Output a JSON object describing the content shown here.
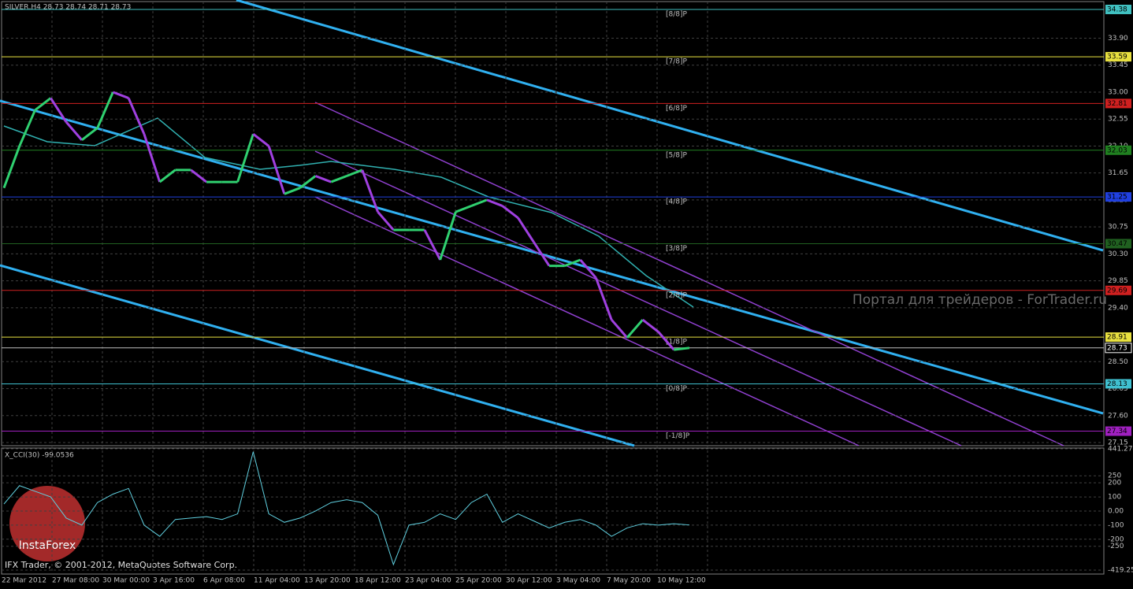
{
  "chart_data": {
    "type": "line",
    "title": "SILVER,H4  28.73 28.74 28.71 28.73",
    "watermark": "Портал для трейдеров - ForTrader.ru",
    "footer": "IFX Trader, © 2001-2012, MetaQuotes Software Corp.",
    "logo": "InstaForex",
    "ylim": [
      27.15,
      34.38
    ],
    "yticks": [
      {
        "value": 33.9,
        "label": "33.90"
      },
      33.45,
      {
        "value": 33.0,
        "label": "33.00"
      },
      32.55,
      {
        "value": 32.1,
        "label": "32.10"
      },
      31.65,
      {
        "value": 31.2,
        "label": "31.20"
      },
      30.75,
      {
        "value": 30.3,
        "label": "30.30"
      },
      29.85,
      {
        "value": 29.4,
        "label": "29.40"
      },
      {
        "value": 28.5,
        "label": "28.50"
      },
      28.05,
      {
        "value": 27.6,
        "label": "27.60"
      },
      27.15
    ],
    "levels": [
      {
        "value": 34.38,
        "label": "34.38",
        "tag": "[8/8]P",
        "color": "#40c0c0"
      },
      {
        "value": 33.59,
        "label": "33.59",
        "tag": "[7/8]P",
        "color": "#e8e040"
      },
      {
        "value": 32.81,
        "label": "32.81",
        "tag": "[6/8]P",
        "color": "#d02020"
      },
      {
        "value": 32.03,
        "label": "32.03",
        "tag": "[5/8]P",
        "color": "#208020"
      },
      {
        "value": 31.25,
        "label": "31.25",
        "tag": "[4/8]P",
        "color": "#2040e0"
      },
      {
        "value": 30.47,
        "label": "30.47",
        "tag": "[3/8]P",
        "color": "#206020"
      },
      {
        "value": 29.69,
        "label": "29.69",
        "tag": "[2/8]P",
        "color": "#d02020"
      },
      {
        "value": 28.91,
        "label": "28.91",
        "tag": "[1/8]P",
        "color": "#e8e040"
      },
      {
        "value": 28.13,
        "label": "28.13",
        "tag": "[0/8]P",
        "color": "#40c0d0"
      },
      {
        "value": 27.34,
        "label": "27.34",
        "tag": "[-1/8]P",
        "color": "#a020c0"
      }
    ],
    "current": {
      "value": 28.73,
      "label": "28.73"
    },
    "xticks": [
      "22 Mar 2012",
      "27 Mar 08:00",
      "30 Mar 00:00",
      "3 Apr 16:00",
      "6 Apr 08:00",
      "11 Apr 04:00",
      "13 Apr 20:00",
      "18 Apr 12:00",
      "23 Apr 04:00",
      "25 Apr 20:00",
      "30 Apr 12:00",
      "3 May 04:00",
      "7 May 20:00",
      "10 May 12:00"
    ],
    "series": [
      {
        "name": "SILVER close",
        "up_color": "#30d070",
        "down_color": "#a040e0",
        "values": [
          31.4,
          32.1,
          32.7,
          32.9,
          32.5,
          32.2,
          32.4,
          33.0,
          32.9,
          32.3,
          31.5,
          31.7,
          31.7,
          31.5,
          31.5,
          31.5,
          32.3,
          32.1,
          31.3,
          31.4,
          31.6,
          31.5,
          31.6,
          31.7,
          31.0,
          30.7,
          30.7,
          30.7,
          30.2,
          31.0,
          31.1,
          31.2,
          31.1,
          30.9,
          30.5,
          30.1,
          30.1,
          30.2,
          29.9,
          29.2,
          28.9,
          29.2,
          29.0,
          28.7,
          28.73
        ]
      }
    ],
    "cci": {
      "label": "X_CCI(30) -99.0536",
      "color": "#60d0e0",
      "ylim": [
        -419.254,
        441.274
      ],
      "yticks": [
        441.274,
        250,
        200,
        100,
        {
          "value": 0,
          "label": "0.00"
        },
        -100,
        -200,
        -250,
        -419.254
      ],
      "values": [
        50,
        180,
        140,
        100,
        -50,
        -100,
        60,
        120,
        160,
        -100,
        -180,
        -60,
        -50,
        -40,
        -60,
        -20,
        420,
        -20,
        -80,
        -50,
        0,
        60,
        80,
        60,
        -30,
        -380,
        -100,
        -80,
        -20,
        -60,
        60,
        120,
        -80,
        -20,
        -70,
        -120,
        -80,
        -60,
        -100,
        -180,
        -120,
        -90,
        -100,
        -90,
        -99
      ]
    }
  }
}
